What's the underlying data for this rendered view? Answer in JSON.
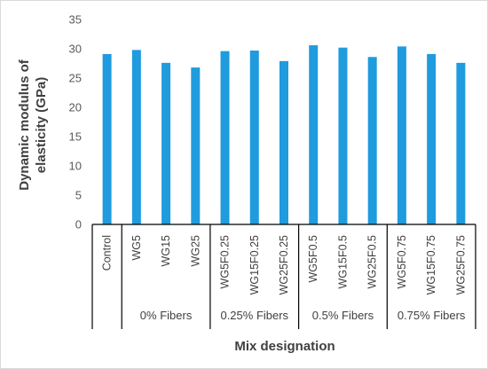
{
  "chart_data": {
    "type": "bar",
    "ylabel": [
      "Dynamic modulus of",
      "elasticity  (GPa)"
    ],
    "xlabel": "Mix designation",
    "ylim": [
      0,
      35
    ],
    "yticks": [
      0,
      5,
      10,
      15,
      20,
      25,
      30,
      35
    ],
    "categories": [
      "Control",
      "WG5",
      "WG15",
      "WG25",
      "WG5F0.25",
      "WG15F0.25",
      "WG25F0.25",
      "WG5F0.5",
      "WG15F0.5",
      "WG25F0.5",
      "WG5F0.75",
      "WG15F0.75",
      "WG25F0.75"
    ],
    "values": [
      29.1,
      29.8,
      27.6,
      26.8,
      29.6,
      29.7,
      27.9,
      30.6,
      30.2,
      28.6,
      30.4,
      29.1,
      27.6
    ],
    "groups": [
      {
        "label": "",
        "start": 0,
        "end": 0
      },
      {
        "label": "0% Fibers",
        "start": 1,
        "end": 3
      },
      {
        "label": "0.25% Fibers",
        "start": 4,
        "end": 6
      },
      {
        "label": "0.5% Fibers",
        "start": 7,
        "end": 9
      },
      {
        "label": "0.75% Fibers",
        "start": 10,
        "end": 12
      }
    ],
    "bar_color": "#1f9bde",
    "grid": false
  }
}
